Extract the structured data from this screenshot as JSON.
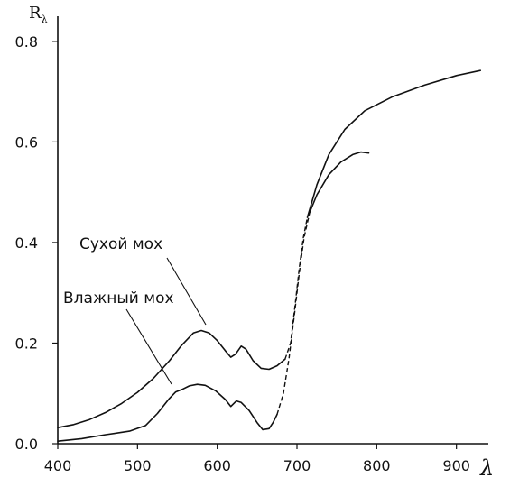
{
  "chart_data": {
    "type": "line",
    "title": "",
    "xlabel": "λ",
    "ylabel": "R",
    "ylabel_subscript": "λ",
    "xlim": [
      400,
      940
    ],
    "ylim": [
      0,
      0.85
    ],
    "x_ticks": [
      400,
      500,
      600,
      700,
      800,
      900
    ],
    "x_tick_labels": [
      "400",
      "500",
      "600",
      "700",
      "800",
      "900"
    ],
    "y_ticks": [
      0.0,
      0.2,
      0.4,
      0.6,
      0.8
    ],
    "y_tick_labels": [
      "0.0",
      "0.2",
      "0.4",
      "0.6",
      "0.8"
    ],
    "grid": false,
    "series": [
      {
        "name": "Сухой мох",
        "solid_segments": [
          [
            [
              400,
              0.032
            ],
            [
              420,
              0.038
            ],
            [
              440,
              0.048
            ],
            [
              460,
              0.062
            ],
            [
              480,
              0.08
            ],
            [
              500,
              0.102
            ],
            [
              520,
              0.13
            ],
            [
              540,
              0.165
            ],
            [
              555,
              0.195
            ],
            [
              570,
              0.22
            ],
            [
              580,
              0.225
            ],
            [
              590,
              0.22
            ],
            [
              600,
              0.205
            ],
            [
              610,
              0.185
            ],
            [
              617,
              0.172
            ],
            [
              623,
              0.178
            ],
            [
              630,
              0.194
            ],
            [
              636,
              0.188
            ],
            [
              645,
              0.165
            ],
            [
              655,
              0.15
            ],
            [
              665,
              0.148
            ],
            [
              675,
              0.155
            ],
            [
              685,
              0.168
            ]
          ],
          [
            [
              713,
              0.45
            ],
            [
              725,
              0.515
            ],
            [
              740,
              0.575
            ],
            [
              760,
              0.625
            ],
            [
              785,
              0.662
            ],
            [
              820,
              0.69
            ],
            [
              860,
              0.713
            ],
            [
              900,
              0.732
            ],
            [
              930,
              0.742
            ]
          ]
        ],
        "dashed_segments": [
          [
            [
              685,
              0.168
            ],
            [
              692,
              0.2
            ],
            [
              698,
              0.28
            ],
            [
              703,
              0.35
            ],
            [
              708,
              0.41
            ],
            [
              713,
              0.45
            ]
          ]
        ]
      },
      {
        "name": "Влажный мох",
        "solid_segments": [
          [
            [
              400,
              0.005
            ],
            [
              430,
              0.01
            ],
            [
              460,
              0.018
            ],
            [
              490,
              0.025
            ],
            [
              510,
              0.036
            ],
            [
              525,
              0.06
            ],
            [
              540,
              0.09
            ],
            [
              548,
              0.103
            ],
            [
              556,
              0.108
            ],
            [
              565,
              0.115
            ],
            [
              575,
              0.118
            ],
            [
              585,
              0.116
            ],
            [
              598,
              0.105
            ],
            [
              610,
              0.088
            ],
            [
              617,
              0.074
            ],
            [
              624,
              0.085
            ],
            [
              630,
              0.082
            ],
            [
              640,
              0.066
            ],
            [
              650,
              0.042
            ],
            [
              657,
              0.028
            ],
            [
              665,
              0.03
            ],
            [
              670,
              0.042
            ],
            [
              675,
              0.058
            ]
          ],
          [
            [
              716,
              0.46
            ],
            [
              725,
              0.495
            ],
            [
              740,
              0.535
            ],
            [
              755,
              0.56
            ],
            [
              770,
              0.575
            ],
            [
              780,
              0.58
            ],
            [
              790,
              0.578
            ]
          ]
        ],
        "dashed_segments": [
          [
            [
              675,
              0.058
            ],
            [
              683,
              0.1
            ],
            [
              690,
              0.17
            ],
            [
              697,
              0.26
            ],
            [
              703,
              0.34
            ],
            [
              709,
              0.41
            ],
            [
              716,
              0.46
            ]
          ]
        ]
      }
    ],
    "annotations": [
      {
        "text": "Сухой мох",
        "points_to_series": "Сухой мох"
      },
      {
        "text": "Влажный мох",
        "points_to_series": "Влажный мох"
      }
    ]
  }
}
